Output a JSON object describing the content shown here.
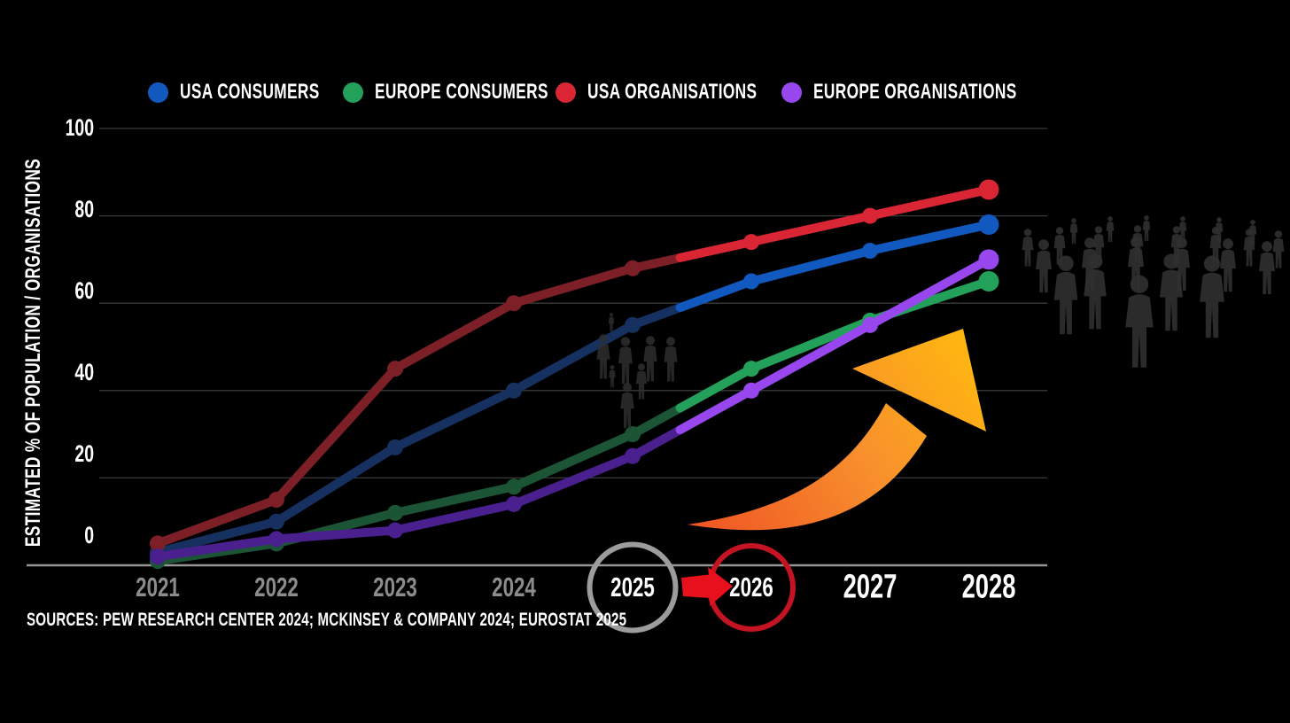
{
  "sources": "SOURCES: PEW RESEARCH CENTER 2024; MCKINSEY & COMPANY 2024; EUROSTAT 2025",
  "colors": {
    "background": "#000000",
    "gridline": "#3a3a3a",
    "axis_line": "#949494",
    "tick_label_historical": "#8c8c8c",
    "tick_label_forecast": "#ffffff",
    "current_year_circle": "#9c9c9c",
    "forecast_year_circle": "#c41322",
    "red_arrow": "#e8101c",
    "growth_arrow_gradient": [
      "#ef5423",
      "#f8902d",
      "#ffb70f"
    ],
    "crowd_silhouette": "#303030"
  },
  "annotations": {
    "current_year_circled": "2025",
    "forecast_year_circled": "2026",
    "icons": [
      "people-group-small-icon",
      "people-crowd-large-icon",
      "growth-arrow-icon",
      "arrow-right-icon"
    ]
  },
  "chart_data": {
    "type": "line",
    "title": "",
    "xlabel": "",
    "ylabel": "ESTIMATED % OF POPULATION / ORGANISATIONS",
    "x": [
      "2021",
      "2022",
      "2023",
      "2024",
      "2025",
      "2026",
      "2027",
      "2028"
    ],
    "yticks": [
      0,
      20,
      40,
      60,
      80,
      100
    ],
    "ylim": [
      0,
      100
    ],
    "grid": true,
    "legend_position": "top",
    "forecast_starts_after": "2025",
    "series": [
      {
        "name": "USA CONSUMERS",
        "values": [
          3,
          10,
          27,
          40,
          55,
          65,
          72,
          78
        ],
        "color_historical": "#16305f",
        "color_forecast": "#1158bf"
      },
      {
        "name": "EUROPE CONSUMERS",
        "values": [
          1,
          5,
          12,
          18,
          30,
          45,
          56,
          65
        ],
        "color_historical": "#1c5535",
        "color_forecast": "#23a05a"
      },
      {
        "name": "USA ORGANISATIONS",
        "values": [
          5,
          15,
          45,
          60,
          68,
          74,
          80,
          86
        ],
        "color_historical": "#7c1f27",
        "color_forecast": "#da2535"
      },
      {
        "name": "EUROPE ORGANISATIONS",
        "values": [
          2,
          6,
          8,
          14,
          25,
          40,
          55,
          70
        ],
        "color_historical": "#4a1f8e",
        "color_forecast": "#9747ed"
      }
    ]
  }
}
